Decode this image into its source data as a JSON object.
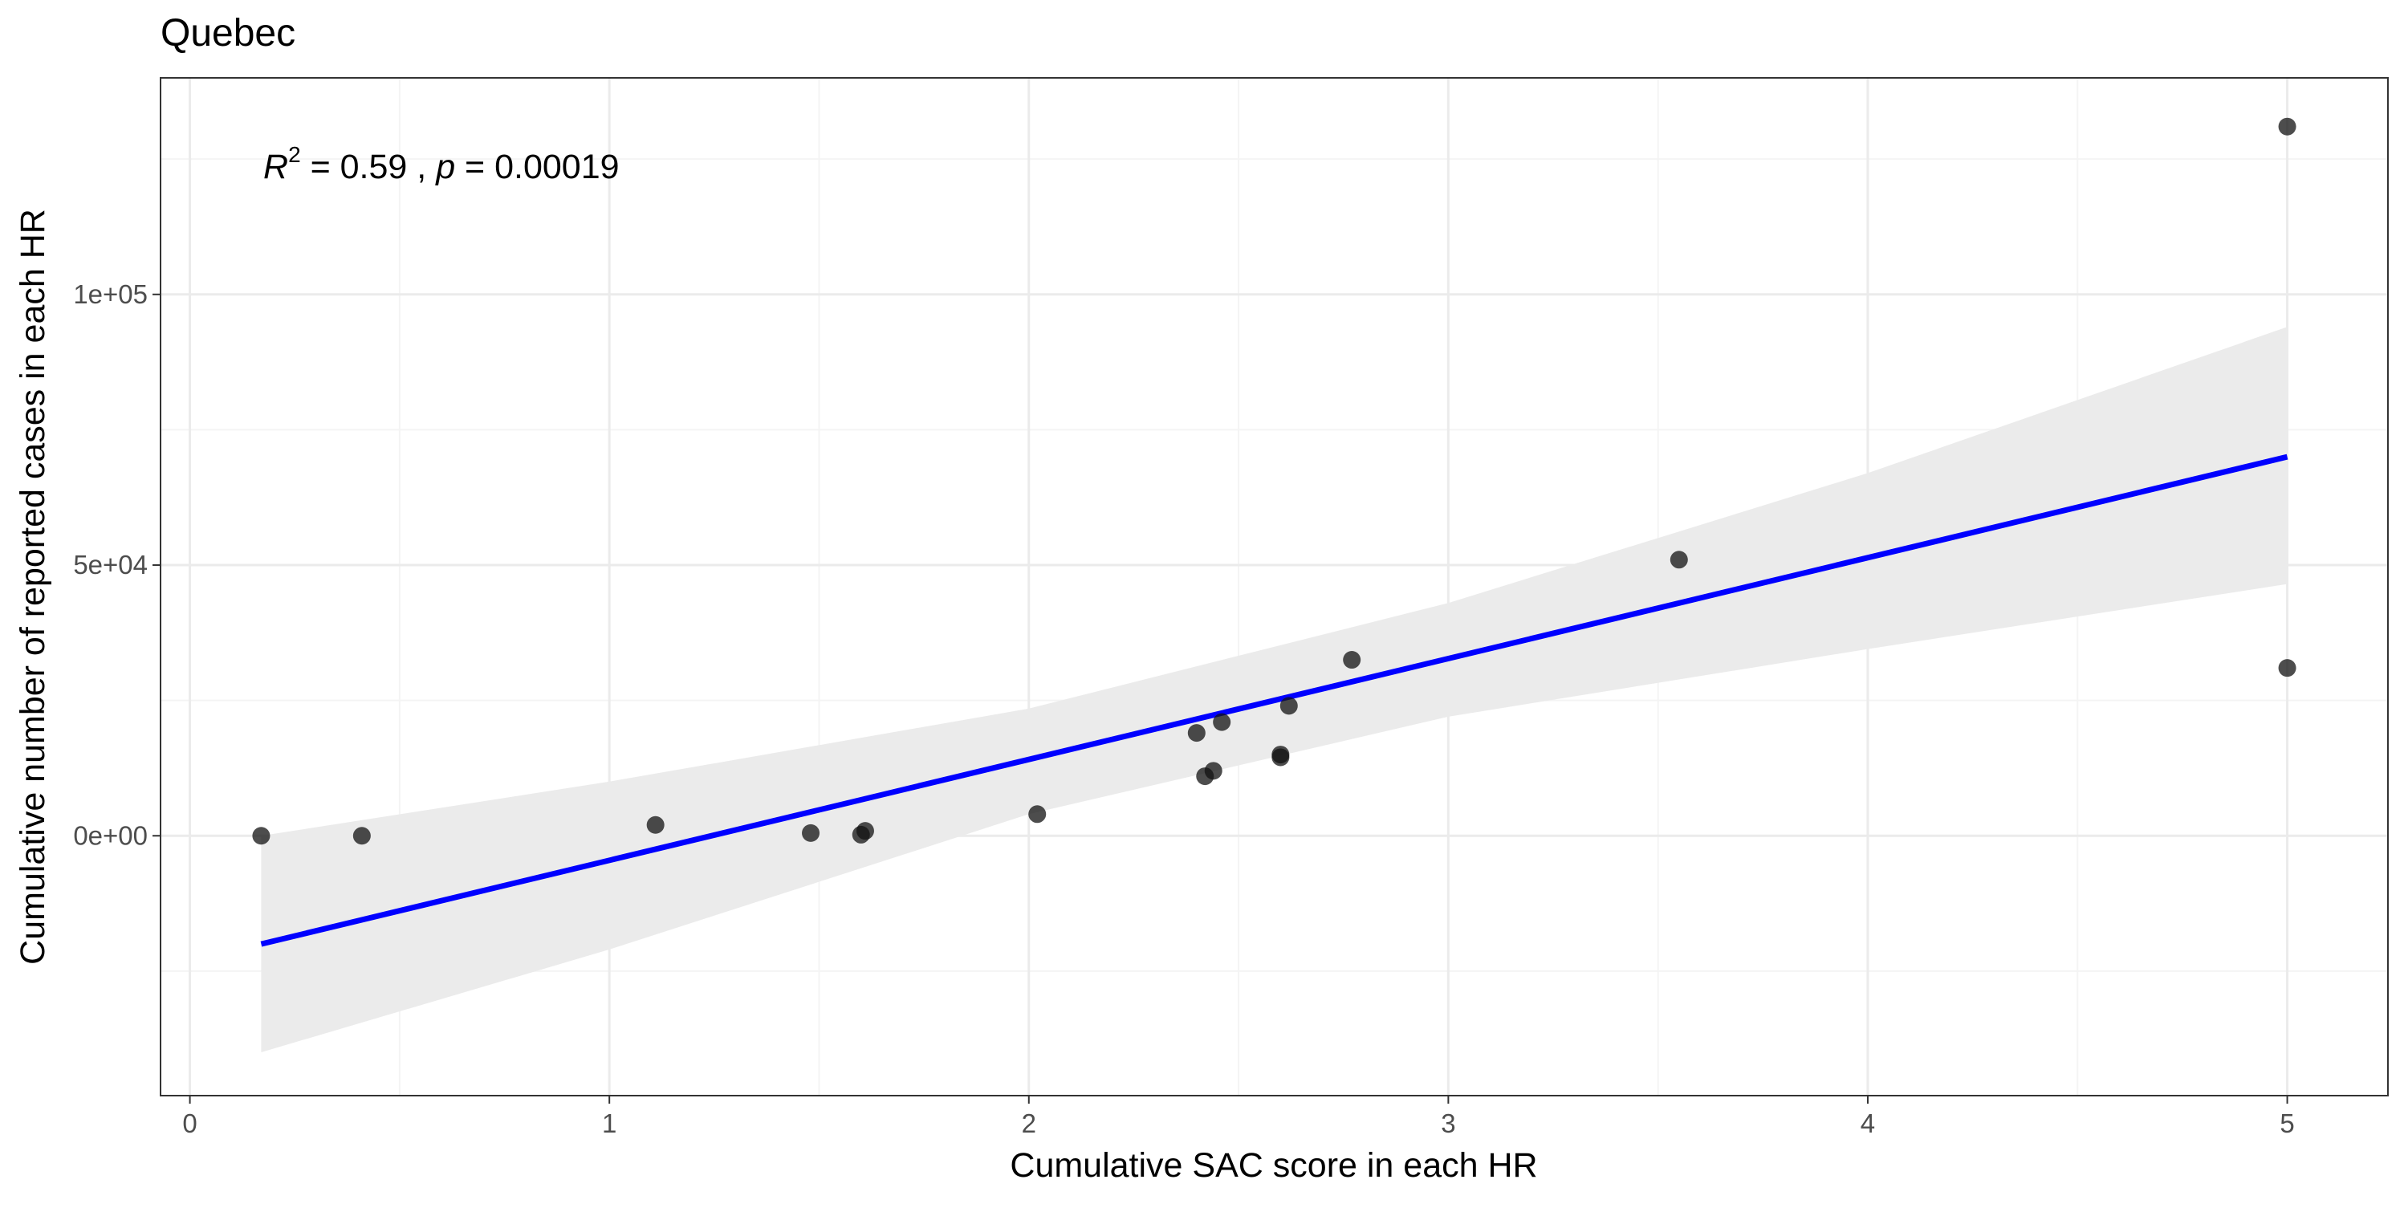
{
  "chart_data": {
    "type": "scatter",
    "title": "Quebec",
    "xlabel": "Cumulative SAC score in each HR",
    "ylabel": "Cumulative number of reported cases in each HR",
    "xlim": [
      -0.07,
      5.24
    ],
    "ylim": [
      -48000,
      140000
    ],
    "x_ticks": [
      0,
      1,
      2,
      3,
      4,
      5
    ],
    "x_tick_labels": [
      "0",
      "1",
      "2",
      "3",
      "4",
      "5"
    ],
    "y_ticks": [
      0,
      50000,
      100000
    ],
    "y_tick_labels": [
      "0e+00",
      "5e+04",
      "1e+05"
    ],
    "grid": true,
    "annotation": {
      "r_label": "R",
      "r_exponent": "2",
      "r_value": " = 0.59 , ",
      "p_label": "p",
      "p_value": " = 0.00019"
    },
    "points": [
      {
        "x": 0.17,
        "y": 0
      },
      {
        "x": 0.41,
        "y": 0
      },
      {
        "x": 1.11,
        "y": 2000
      },
      {
        "x": 1.48,
        "y": 500
      },
      {
        "x": 1.6,
        "y": 200
      },
      {
        "x": 1.61,
        "y": 900
      },
      {
        "x": 2.02,
        "y": 4000
      },
      {
        "x": 2.4,
        "y": 19000
      },
      {
        "x": 2.42,
        "y": 11000
      },
      {
        "x": 2.44,
        "y": 12000
      },
      {
        "x": 2.46,
        "y": 21000
      },
      {
        "x": 2.6,
        "y": 15000
      },
      {
        "x": 2.6,
        "y": 14500
      },
      {
        "x": 2.62,
        "y": 24000
      },
      {
        "x": 2.77,
        "y": 32500
      },
      {
        "x": 3.55,
        "y": 51000
      },
      {
        "x": 5.0,
        "y": 131000
      },
      {
        "x": 5.0,
        "y": 31000
      }
    ],
    "fit_line": {
      "x": [
        0.17,
        5.0
      ],
      "y": [
        -20000,
        70000
      ],
      "color": "#0000ff"
    },
    "confidence_band": {
      "x": [
        0.17,
        1.0,
        2.0,
        3.0,
        4.0,
        5.0
      ],
      "upper": [
        0,
        10000,
        23500,
        43000,
        67000,
        94000
      ],
      "lower": [
        -40000,
        -21000,
        4000,
        22000,
        34500,
        46500
      ],
      "color": "#ebebeb"
    },
    "colors": {
      "point": "#111111",
      "panel_border": "#333333",
      "grid_major": "#ebebeb",
      "grid_minor": "#f4f4f4"
    }
  }
}
